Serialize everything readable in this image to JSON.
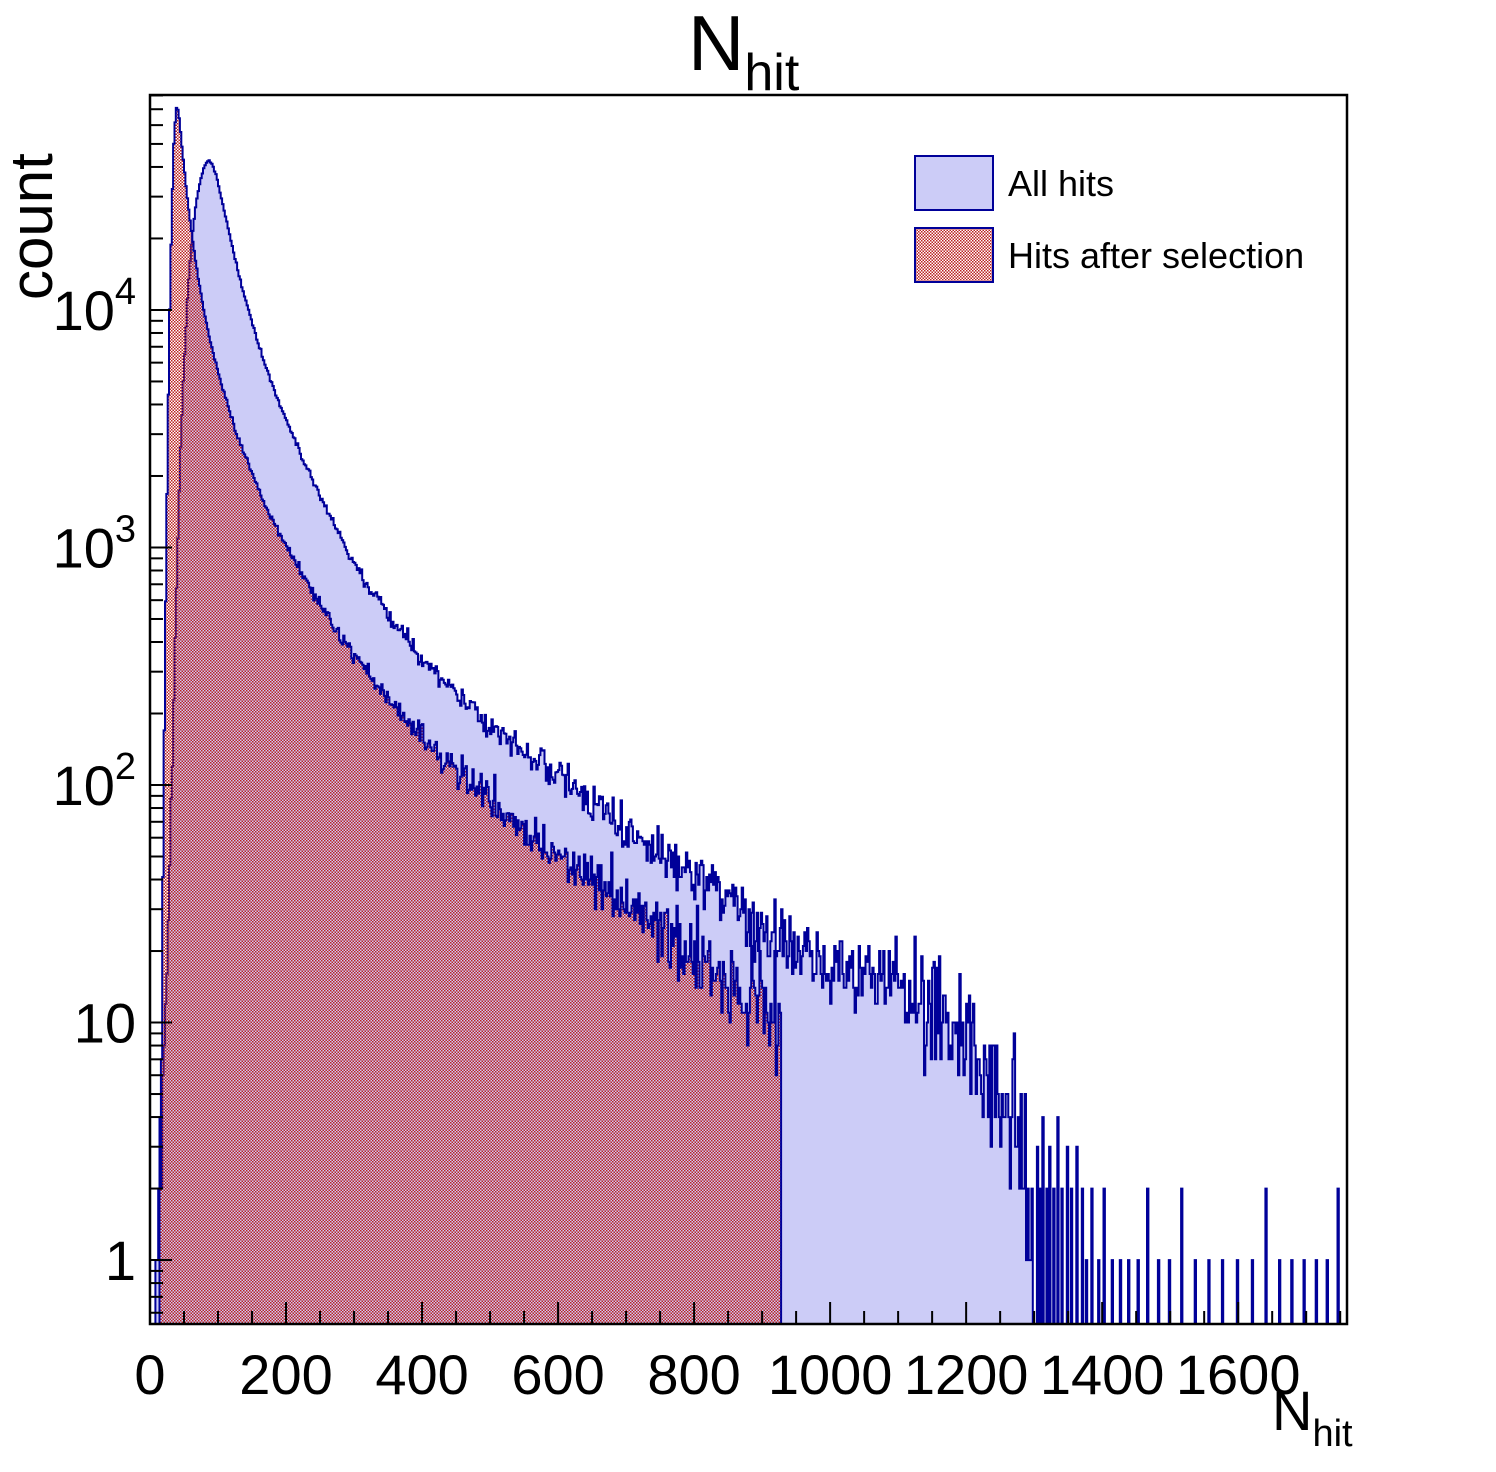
{
  "title": {
    "main": "N",
    "sub": "hit"
  },
  "y_axis": {
    "label": "count",
    "scale": "log",
    "ticks": [
      {
        "v": 1,
        "base": "1",
        "exp": ""
      },
      {
        "v": 10,
        "base": "10",
        "exp": ""
      },
      {
        "v": 100,
        "base": "10",
        "exp": "2"
      },
      {
        "v": 1000,
        "base": "10",
        "exp": "3"
      },
      {
        "v": 10000,
        "base": "10",
        "exp": "4"
      }
    ]
  },
  "x_axis": {
    "label_main": "N",
    "label_sub": "hit",
    "tick_values": [
      0,
      200,
      400,
      600,
      800,
      1000,
      1200,
      1400,
      1600
    ],
    "minor_step": 50
  },
  "legend": {
    "items": [
      {
        "label": "All hits",
        "swatch": "solid"
      },
      {
        "label": "Hits after selection",
        "swatch": "checker"
      }
    ]
  },
  "colors": {
    "background": "#ffffff",
    "frame": "#000000",
    "text": "#000000",
    "hist_fill": "#ccccf7",
    "hist_edge": "#000099",
    "checker_red": "#bb2222"
  },
  "chart_data": {
    "type": "bar",
    "subtype": "overlaid-log-histograms",
    "title": "N_hit",
    "xlabel": "N_hit",
    "ylabel": "count",
    "xlim": [
      0,
      1760
    ],
    "ylim": [
      0.538,
      80350
    ],
    "ylog": true,
    "grid": false,
    "legend_position": "top-right",
    "bin_width": 2,
    "series": [
      {
        "name": "All hits",
        "style": "solid",
        "seed": 1337,
        "fill_end": 1298,
        "control_points": [
          [
            6,
            0.55
          ],
          [
            10,
            1.2
          ],
          [
            14,
            2.5
          ],
          [
            18,
            5
          ],
          [
            22,
            11
          ],
          [
            26,
            26
          ],
          [
            30,
            60
          ],
          [
            35,
            250
          ],
          [
            40,
            900
          ],
          [
            45,
            2600
          ],
          [
            50,
            5800
          ],
          [
            56,
            12500
          ],
          [
            62,
            20500
          ],
          [
            68,
            28500
          ],
          [
            74,
            35000
          ],
          [
            80,
            40500
          ],
          [
            86,
            42800
          ],
          [
            92,
            40800
          ],
          [
            98,
            36500
          ],
          [
            105,
            29500
          ],
          [
            112,
            24000
          ],
          [
            120,
            19000
          ],
          [
            130,
            14300
          ],
          [
            140,
            11200
          ],
          [
            152,
            8500
          ],
          [
            165,
            6400
          ],
          [
            180,
            4850
          ],
          [
            195,
            3750
          ],
          [
            212,
            2850
          ],
          [
            230,
            2200
          ],
          [
            250,
            1650
          ],
          [
            272,
            1230
          ],
          [
            292,
            950
          ],
          [
            315,
            730
          ],
          [
            340,
            570
          ],
          [
            365,
            455
          ],
          [
            390,
            365
          ],
          [
            415,
            305
          ],
          [
            440,
            258
          ],
          [
            470,
            218
          ],
          [
            500,
            183
          ],
          [
            530,
            155
          ],
          [
            560,
            132
          ],
          [
            590,
            114
          ],
          [
            625,
            97
          ],
          [
            660,
            83
          ],
          [
            700,
            68
          ],
          [
            740,
            57
          ],
          [
            780,
            47
          ],
          [
            820,
            38.5
          ],
          [
            860,
            31.5
          ],
          [
            900,
            26
          ],
          [
            940,
            22
          ],
          [
            980,
            19
          ],
          [
            1020,
            17
          ],
          [
            1060,
            15.5
          ],
          [
            1100,
            14
          ],
          [
            1140,
            12
          ],
          [
            1180,
            10
          ],
          [
            1215,
            8.5
          ],
          [
            1245,
            6
          ],
          [
            1270,
            4
          ],
          [
            1285,
            3
          ],
          [
            1298,
            2.2
          ]
        ],
        "spikes": [
          [
            1304,
            3
          ],
          [
            1309,
            2
          ],
          [
            1313,
            4
          ],
          [
            1318,
            2
          ],
          [
            1323,
            3
          ],
          [
            1329,
            2
          ],
          [
            1335,
            4
          ],
          [
            1341,
            2
          ],
          [
            1348,
            3
          ],
          [
            1355,
            2
          ],
          [
            1362,
            3
          ],
          [
            1370,
            2
          ],
          [
            1377,
            1
          ],
          [
            1385,
            2
          ],
          [
            1394,
            1
          ],
          [
            1403,
            2
          ],
          [
            1414,
            1
          ],
          [
            1426,
            1
          ],
          [
            1438,
            1
          ],
          [
            1452,
            1
          ],
          [
            1467,
            2
          ],
          [
            1482,
            1
          ],
          [
            1498,
            1
          ],
          [
            1517,
            2
          ],
          [
            1536,
            1
          ],
          [
            1556,
            1
          ],
          [
            1577,
            1
          ],
          [
            1599,
            1
          ],
          [
            1620,
            1
          ],
          [
            1641,
            2
          ],
          [
            1660,
            1
          ],
          [
            1679,
            1
          ],
          [
            1697,
            1
          ],
          [
            1714,
            1
          ],
          [
            1730,
            1
          ],
          [
            1747,
            2
          ]
        ]
      },
      {
        "name": "Hits after selection",
        "style": "checker",
        "seed": 4242,
        "cutoff": 928,
        "control_points": [
          [
            14,
            0.8
          ],
          [
            17,
            8
          ],
          [
            20,
            80
          ],
          [
            23,
            600
          ],
          [
            26,
            3000
          ],
          [
            29,
            10000
          ],
          [
            32,
            26000
          ],
          [
            35,
            50000
          ],
          [
            38,
            68000
          ],
          [
            40,
            73000
          ],
          [
            43,
            64000
          ],
          [
            46,
            52000
          ],
          [
            50,
            40000
          ],
          [
            55,
            29500
          ],
          [
            60,
            22500
          ],
          [
            66,
            16800
          ],
          [
            72,
            13000
          ],
          [
            80,
            9800
          ],
          [
            88,
            7600
          ],
          [
            96,
            6100
          ],
          [
            105,
            4900
          ],
          [
            115,
            3900
          ],
          [
            126,
            3100
          ],
          [
            138,
            2500
          ],
          [
            152,
            2000
          ],
          [
            168,
            1560
          ],
          [
            185,
            1230
          ],
          [
            205,
            960
          ],
          [
            225,
            760
          ],
          [
            248,
            590
          ],
          [
            272,
            460
          ],
          [
            298,
            360
          ],
          [
            325,
            285
          ],
          [
            355,
            222
          ],
          [
            385,
            178
          ],
          [
            415,
            143
          ],
          [
            450,
            114
          ],
          [
            485,
            92
          ],
          [
            520,
            75
          ],
          [
            560,
            61
          ],
          [
            600,
            51
          ],
          [
            640,
            42
          ],
          [
            680,
            35
          ],
          [
            720,
            29
          ],
          [
            760,
            24
          ],
          [
            800,
            20
          ],
          [
            840,
            16.5
          ],
          [
            870,
            14
          ],
          [
            895,
            12
          ],
          [
            912,
            10
          ],
          [
            922,
            8.5
          ],
          [
            928,
            7
          ]
        ],
        "spikes": []
      }
    ]
  }
}
